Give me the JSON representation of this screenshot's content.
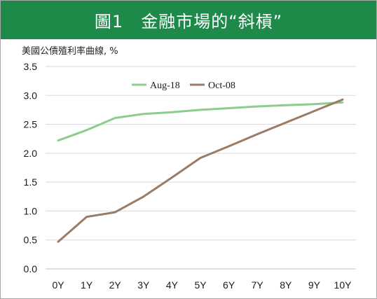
{
  "title": "圖1　金融市場的“斜槓”",
  "ylabel": "美國公債殖利率曲線, %",
  "colors": {
    "header": "#1e8a4a",
    "aug": "#8ccc8c",
    "oct": "#9a7b66",
    "grid": "#d9d9d9"
  },
  "chart_data": {
    "type": "line",
    "categories": [
      "0Y",
      "1Y",
      "2Y",
      "3Y",
      "4Y",
      "5Y",
      "6Y",
      "7Y",
      "8Y",
      "9Y",
      "10Y"
    ],
    "yticks": [
      "0.0",
      "0.5",
      "1.0",
      "1.5",
      "2.0",
      "2.5",
      "3.0",
      "3.5"
    ],
    "ylim": [
      0,
      3.5
    ],
    "grid": true,
    "legend": "top-center",
    "series": [
      {
        "name": "Aug-18",
        "color": "#8ccc8c",
        "values": [
          2.22,
          2.4,
          2.61,
          2.68,
          2.71,
          2.75,
          2.78,
          2.81,
          2.83,
          2.85,
          2.88
        ]
      },
      {
        "name": "Oct-08",
        "color": "#9a7b66",
        "values": [
          0.47,
          0.9,
          0.98,
          1.25,
          1.58,
          1.92,
          2.12,
          2.33,
          2.53,
          2.73,
          2.93
        ]
      }
    ]
  }
}
